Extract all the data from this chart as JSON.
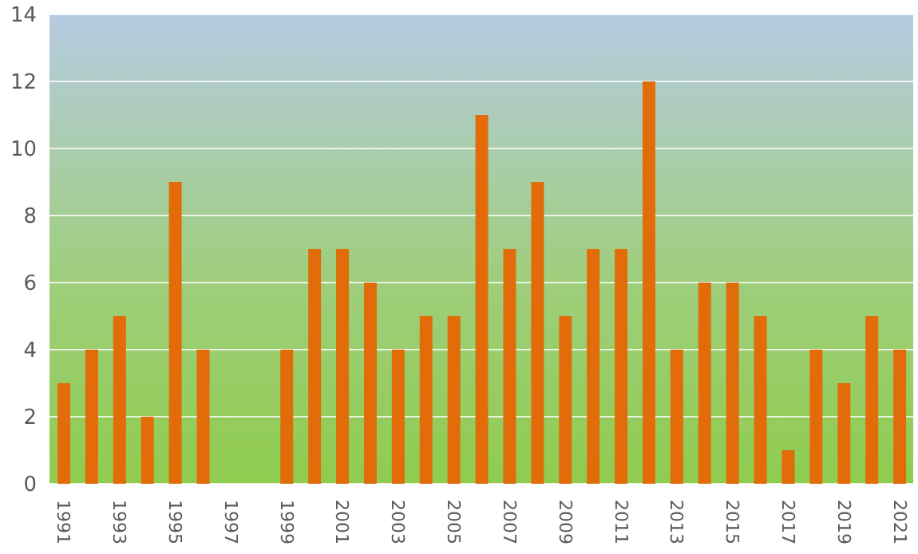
{
  "chart_data": {
    "type": "bar",
    "categories": [
      "1991",
      null,
      "1993",
      null,
      "1995",
      null,
      "1997",
      null,
      "1999",
      null,
      "2001",
      null,
      "2003",
      null,
      "2005",
      null,
      "2007",
      null,
      "2009",
      null,
      "2011",
      null,
      "2013",
      null,
      "2015",
      null,
      "2017",
      null,
      "2019",
      null,
      "2021"
    ],
    "values": [
      3,
      4,
      5,
      2,
      9,
      4,
      0,
      0,
      4,
      7,
      7,
      6,
      4,
      5,
      5,
      11,
      7,
      9,
      5,
      7,
      7,
      12,
      4,
      6,
      6,
      5,
      1,
      4,
      3,
      5,
      4
    ],
    "color": "#e36c0a",
    "ylim": [
      0,
      14
    ],
    "yticks": [
      0,
      2,
      4,
      6,
      8,
      10,
      12,
      14
    ],
    "grid": "y"
  }
}
